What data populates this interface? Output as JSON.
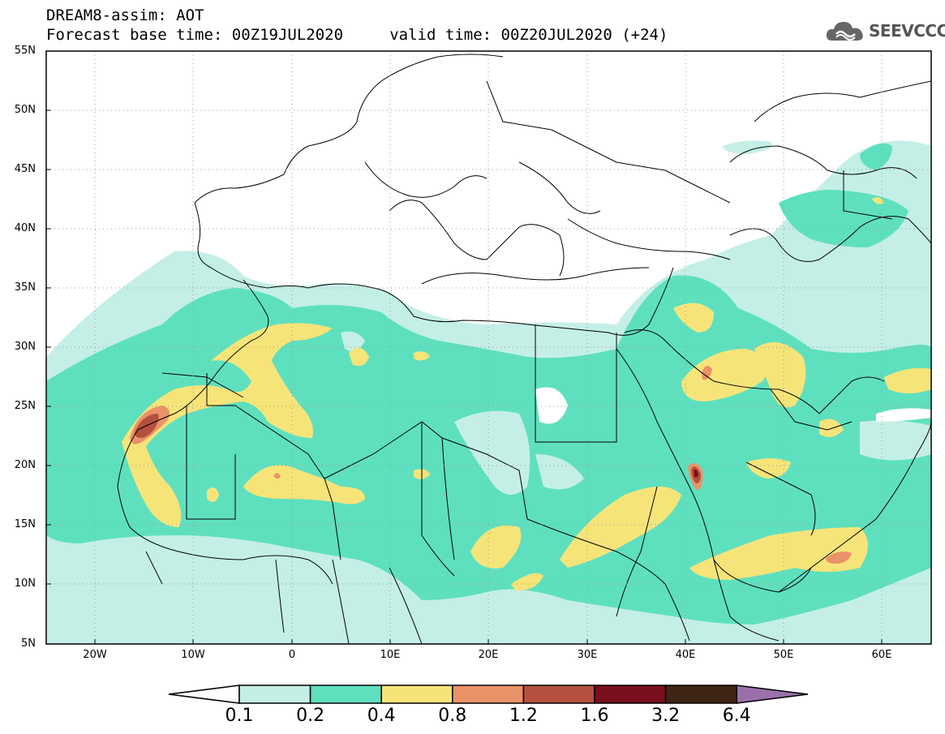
{
  "title_line1": "DREAM8-assim: AOT",
  "title_line2": "Forecast base time: 00Z19JUL2020     valid time: 00Z20JUL2020 (+24)",
  "logo_text": "SEEVCCC",
  "lat_labels": [
    "55N",
    "50N",
    "45N",
    "40N",
    "35N",
    "30N",
    "25N",
    "20N",
    "15N",
    "10N",
    "5N"
  ],
  "lon_labels": [
    "20W",
    "10W",
    "0",
    "10E",
    "20E",
    "30E",
    "40E",
    "50E",
    "60E"
  ],
  "colorbar": {
    "levels": [
      "0.1",
      "0.2",
      "0.4",
      "0.8",
      "1.2",
      "1.6",
      "3.2",
      "6.4"
    ],
    "colors": [
      "#ffffff",
      "#c4efe6",
      "#5ee0bf",
      "#f7e479",
      "#ea9268",
      "#b5503f",
      "#7a0f1d",
      "#3e2414",
      "#9a70ab"
    ]
  },
  "colors": {
    "c1": "#c4efe6",
    "c2": "#5ee0bf",
    "c3": "#f7e479",
    "c4": "#ea9268",
    "c5": "#b5503f",
    "c6": "#7a0f1d"
  }
}
